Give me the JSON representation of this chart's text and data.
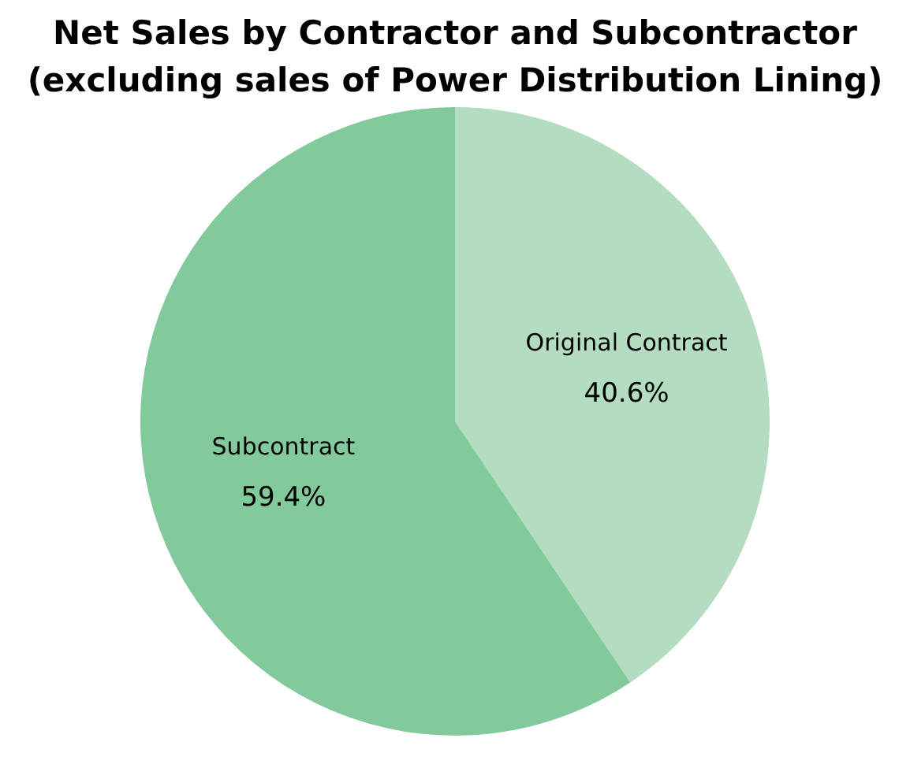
{
  "chart_data": {
    "type": "pie",
    "title": "Net Sales by Contractor and Subcontractor (excluding sales of Power Distribution Lining)",
    "categories": [
      "Original Contract",
      "Subcontract"
    ],
    "values": [
      40.6,
      59.4
    ],
    "colors": [
      "#b3dcc0",
      "#82c99b"
    ],
    "value_labels": [
      "40.6%",
      "59.4%"
    ],
    "legend": false
  }
}
